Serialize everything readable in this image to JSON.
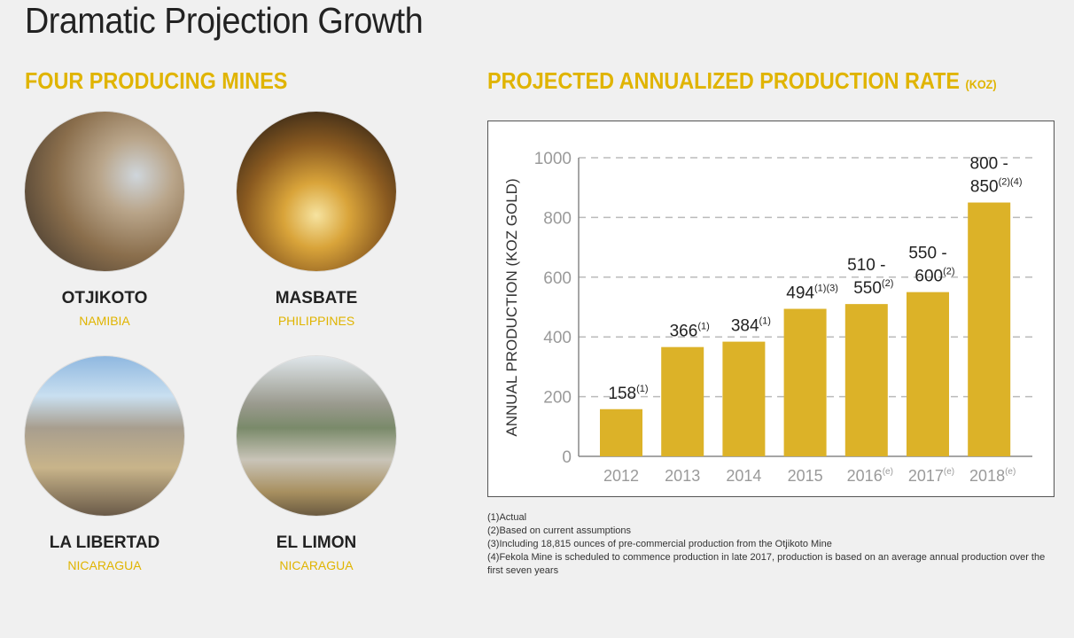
{
  "page_title": "Dramatic Projection Growth",
  "mines_section": {
    "heading": "FOUR PRODUCING MINES",
    "mines": [
      {
        "name": "OTJIKOTO",
        "country": "NAMIBIA"
      },
      {
        "name": "MASBATE",
        "country": "PHILIPPINES"
      },
      {
        "name": "LA LIBERTAD",
        "country": "NICARAGUA"
      },
      {
        "name": "EL LIMON",
        "country": "NICARAGUA"
      }
    ]
  },
  "chart_section": {
    "heading": "PROJECTED ANNUALIZED PRODUCTION RATE",
    "heading_unit": "(KOZ)"
  },
  "chart_data": {
    "type": "bar",
    "ylabel": "ANNUAL PRODUCTION (KOZ GOLD)",
    "ylim": [
      0,
      1000
    ],
    "yticks": [
      "0",
      "200",
      "400",
      "600",
      "800",
      "1000"
    ],
    "grid": "horizontal dashed",
    "bar_color": "#dcb228",
    "categories": [
      {
        "year": "2012",
        "sup": ""
      },
      {
        "year": "2013",
        "sup": ""
      },
      {
        "year": "2014",
        "sup": ""
      },
      {
        "year": "2015",
        "sup": ""
      },
      {
        "year": "2016",
        "sup": "(e)"
      },
      {
        "year": "2017",
        "sup": "(e)"
      },
      {
        "year": "2018",
        "sup": "(e)"
      }
    ],
    "values": [
      158,
      366,
      384,
      494,
      510,
      550,
      850
    ],
    "data_labels": [
      {
        "lines": [
          "158"
        ],
        "sup": "(1)"
      },
      {
        "lines": [
          "366"
        ],
        "sup": "(1)"
      },
      {
        "lines": [
          "384"
        ],
        "sup": "(1)"
      },
      {
        "lines": [
          "494"
        ],
        "sup": "(1)(3)"
      },
      {
        "lines": [
          "510 -",
          "550"
        ],
        "sup": "(2)"
      },
      {
        "lines": [
          "550 -",
          "600"
        ],
        "sup": "(2)"
      },
      {
        "lines": [
          "800 -",
          "850"
        ],
        "sup": "(2)(4)"
      }
    ]
  },
  "footnotes": [
    "(1)Actual",
    "(2)Based on current assumptions",
    "(3)Including 18,815 ounces of pre-commercial production from the Otjikoto Mine",
    "(4)Fekola Mine is scheduled to commence production in late 2017, production is based on an average annual production over the first seven years"
  ],
  "colors": {
    "accent": "#e0b400",
    "bar": "#dcb228",
    "background": "#f0f0f0"
  }
}
